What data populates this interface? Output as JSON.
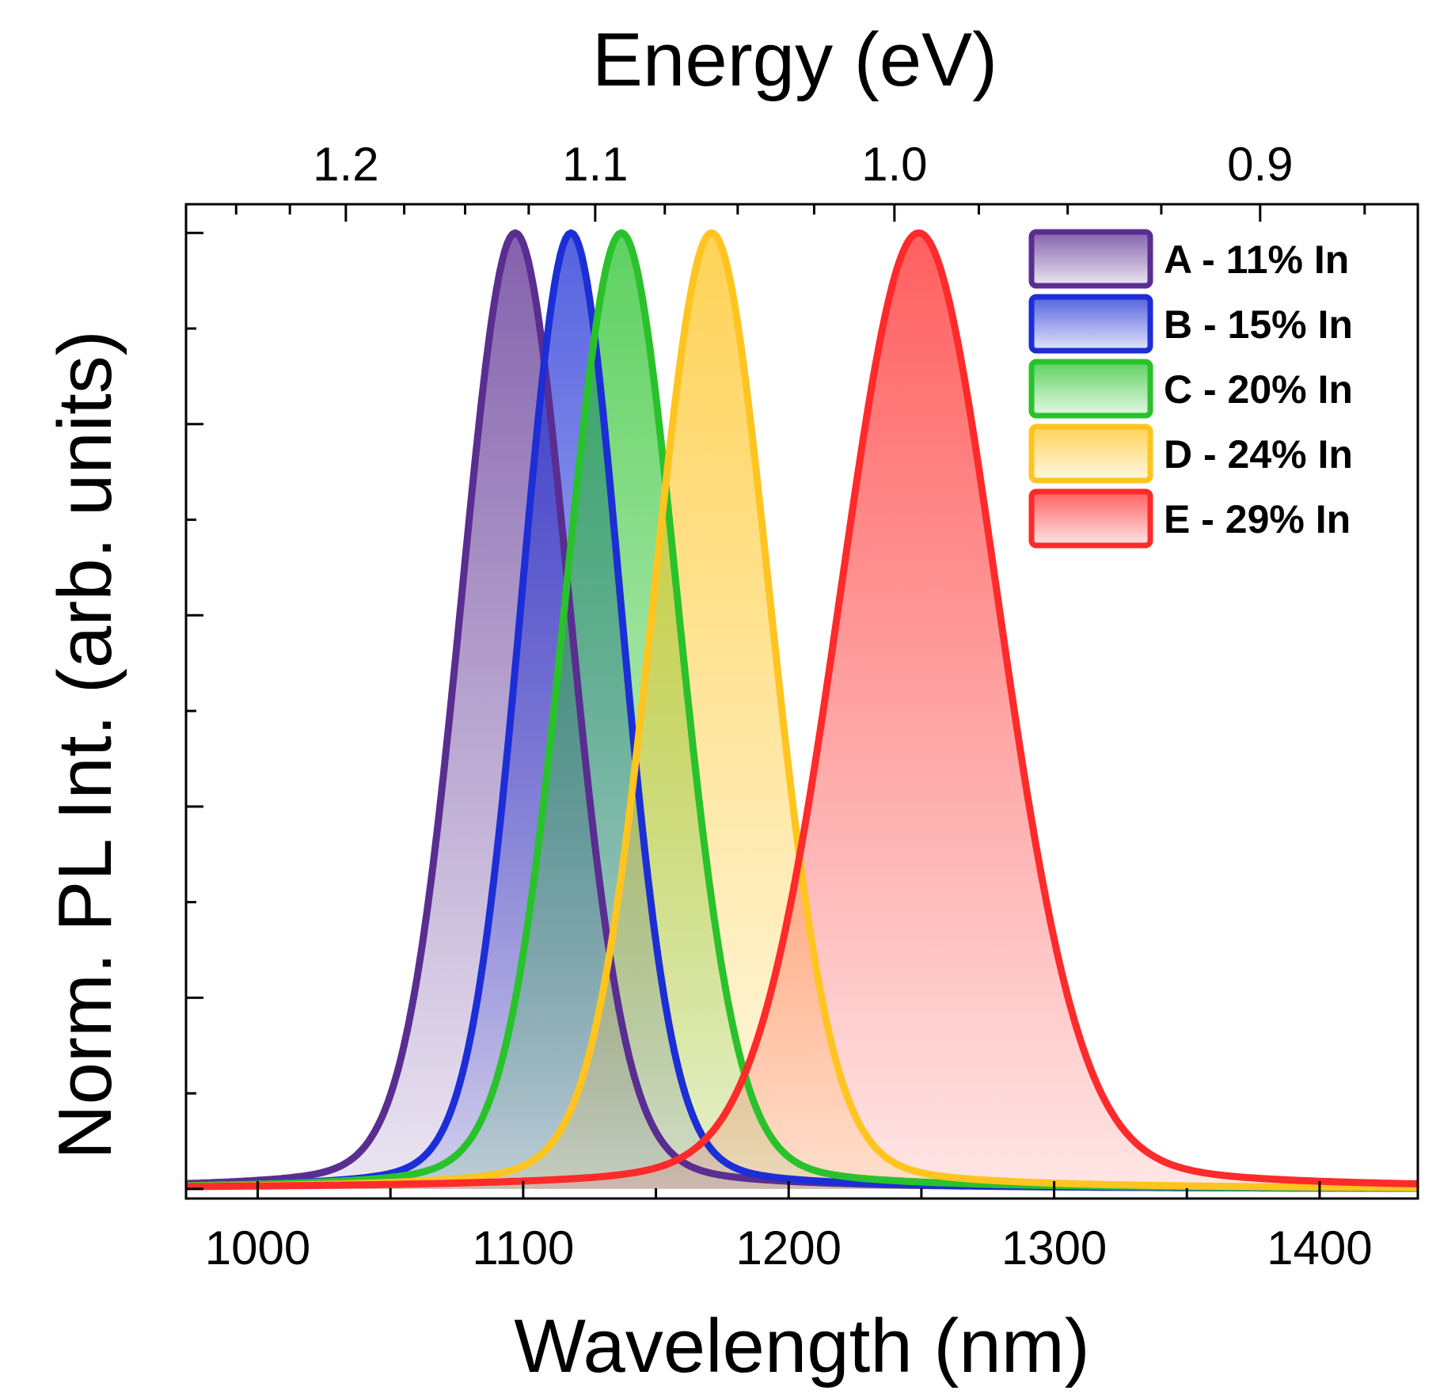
{
  "chart_data": {
    "type": "area",
    "xlabel": "Wavelength (nm)",
    "ylabel": "Norm. PL Int. (arb. units)",
    "top_axis_label": "Energy (eV)",
    "xlim": [
      973,
      1437
    ],
    "ylim": [
      -0.01,
      1.03
    ],
    "x_ticks": [
      1000,
      1100,
      1200,
      1300,
      1400
    ],
    "x_tick_labels": [
      "1000",
      "1100",
      "1200",
      "1300",
      "1400"
    ],
    "top_ticks_eV": [
      1.2,
      1.1,
      1.0,
      0.9
    ],
    "top_tick_labels": [
      "1.2",
      "1.1",
      "1.0",
      "0.9"
    ],
    "y_tick_labels_shown": false,
    "grid": false,
    "legend_position": "top-right",
    "series": [
      {
        "name": "A - 11% In",
        "peak_nm": 1097,
        "fwhm_nm": 49,
        "peak_value": 1.0,
        "color": "#5a2d91"
      },
      {
        "name": "B - 15% In",
        "peak_nm": 1118,
        "fwhm_nm": 45,
        "peak_value": 1.0,
        "color": "#1c2ed6"
      },
      {
        "name": "C - 20% In",
        "peak_nm": 1137,
        "fwhm_nm": 51,
        "peak_value": 1.0,
        "color": "#29c22b"
      },
      {
        "name": "D - 24% In",
        "peak_nm": 1171,
        "fwhm_nm": 53,
        "peak_value": 1.0,
        "color": "#ffc41f"
      },
      {
        "name": "E - 29% In",
        "peak_nm": 1249,
        "fwhm_nm": 72,
        "peak_value": 1.0,
        "color": "#ff2a2a"
      }
    ]
  }
}
